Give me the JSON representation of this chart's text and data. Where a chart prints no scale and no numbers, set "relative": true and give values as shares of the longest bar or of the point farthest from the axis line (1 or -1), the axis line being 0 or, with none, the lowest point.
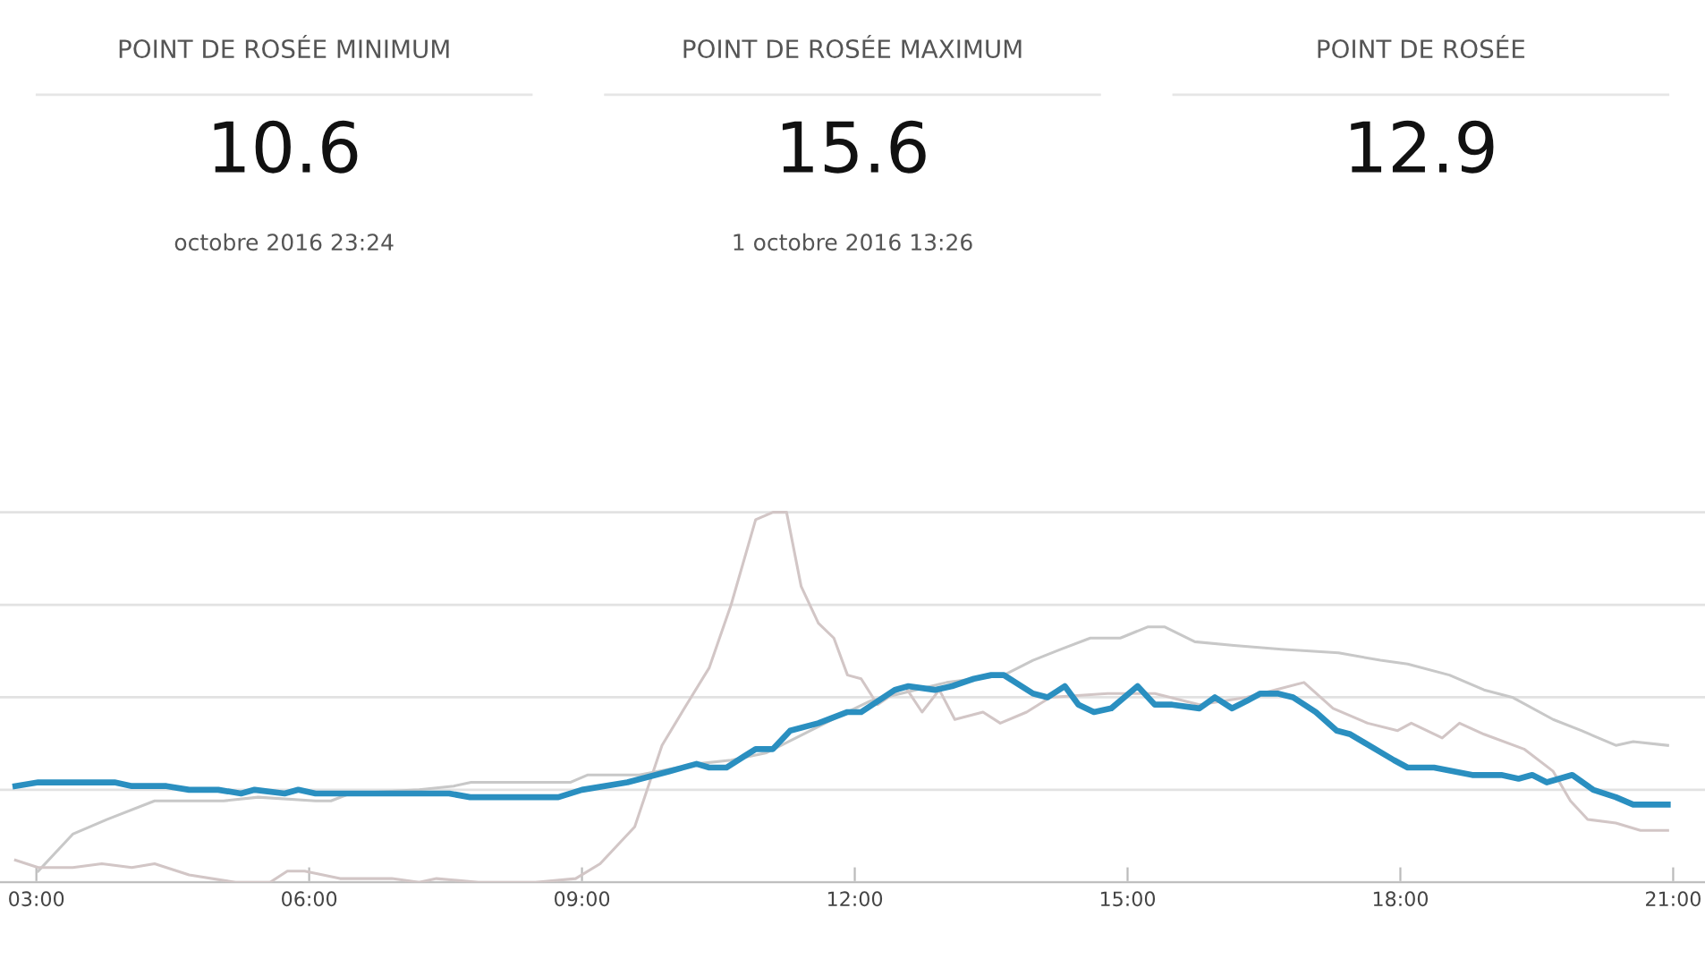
{
  "chart_data": [
    {
      "type": "other",
      "annotations": [
        "POINT DE ROSÉE MINIMUM",
        "10.6",
        "octobre 2016 23:24",
        "POINT DE ROSÉE MAXIMUM",
        "15.6",
        "1 octobre 2016 13:26",
        "POINT DE ROSÉE",
        "12.9"
      ]
    },
    {
      "type": "line",
      "relative": true,
      "grid": "y",
      "tick_labels": "x",
      "xlim": [
        2.6,
        21.35
      ],
      "xticks": [
        {
          "value": 3,
          "label": "03:00"
        },
        {
          "value": 6,
          "label": "06:00"
        },
        {
          "value": 9,
          "label": "09:00"
        },
        {
          "value": 12,
          "label": "12:00"
        },
        {
          "value": 15,
          "label": "15:00"
        },
        {
          "value": 18,
          "label": "18:00"
        },
        {
          "value": 21,
          "label": "21:00"
        }
      ],
      "series": [
        {
          "color": "#c8c8c8",
          "x": [
            3.02,
            3.4,
            3.78,
            4.3,
            5.06,
            5.44,
            6.07,
            6.24,
            6.45,
            7.21,
            7.59,
            7.78,
            8.87,
            9.06,
            9.63,
            10.26,
            10.64,
            11.03,
            11.92,
            12.17,
            13.01,
            13.64,
            13.96,
            14.27,
            14.59,
            14.92,
            15.22,
            15.41,
            15.74,
            16.17,
            16.69,
            17.32,
            17.78,
            18.08,
            18.54,
            18.92,
            19.23,
            19.68,
            19.99,
            20.37,
            20.56,
            20.94
          ],
          "values": [
            0.03,
            0.13,
            0.17,
            0.22,
            0.22,
            0.23,
            0.22,
            0.22,
            0.24,
            0.25,
            0.26,
            0.27,
            0.27,
            0.29,
            0.29,
            0.32,
            0.33,
            0.35,
            0.46,
            0.49,
            0.54,
            0.56,
            0.6,
            0.63,
            0.66,
            0.66,
            0.69,
            0.69,
            0.65,
            0.64,
            0.63,
            0.62,
            0.6,
            0.59,
            0.56,
            0.52,
            0.5,
            0.44,
            0.41,
            0.37,
            0.38,
            0.37
          ]
        },
        {
          "color": "#d2c6c6",
          "x": [
            2.77,
            3.02,
            3.4,
            3.72,
            4.05,
            4.3,
            4.68,
            5.19,
            5.57,
            5.76,
            5.95,
            6.34,
            6.91,
            7.21,
            7.4,
            7.86,
            8.49,
            8.93,
            9.2,
            9.58,
            9.88,
            10.15,
            10.4,
            10.64,
            10.91,
            11.1,
            11.25,
            11.41,
            11.6,
            11.77,
            11.92,
            12.07,
            12.25,
            12.55,
            12.74,
            12.93,
            13.1,
            13.41,
            13.6,
            13.89,
            14.15,
            14.78,
            15.3,
            15.79,
            16.31,
            16.94,
            17.26,
            17.64,
            17.97,
            18.12,
            18.46,
            18.65,
            18.92,
            19.36,
            19.68,
            19.87,
            20.06,
            20.37,
            20.64,
            20.94
          ],
          "values": [
            0.06,
            0.04,
            0.04,
            0.05,
            0.04,
            0.05,
            0.02,
            0,
            0,
            0.03,
            0.03,
            0.01,
            0.01,
            0,
            0.01,
            0,
            0,
            0.01,
            0.05,
            0.15,
            0.37,
            0.48,
            0.58,
            0.75,
            0.98,
            1,
            1,
            0.8,
            0.7,
            0.66,
            0.56,
            0.55,
            0.48,
            0.53,
            0.46,
            0.52,
            0.44,
            0.46,
            0.43,
            0.46,
            0.5,
            0.51,
            0.51,
            0.48,
            0.5,
            0.54,
            0.47,
            0.43,
            0.41,
            0.43,
            0.39,
            0.43,
            0.4,
            0.36,
            0.3,
            0.22,
            0.17,
            0.16,
            0.14,
            0.14
          ]
        },
        {
          "color": "#2a8fc0",
          "x": [
            2.77,
            3.02,
            3.86,
            4.05,
            4.43,
            4.68,
            5.0,
            5.25,
            5.4,
            5.73,
            5.88,
            6.07,
            7.54,
            7.77,
            8.74,
            9.0,
            9.5,
            9.96,
            10.26,
            10.4,
            10.59,
            10.78,
            10.91,
            11.1,
            11.29,
            11.6,
            11.92,
            12.07,
            12.44,
            12.59,
            12.88,
            13.07,
            13.31,
            13.5,
            13.64,
            13.96,
            14.12,
            14.31,
            14.46,
            14.63,
            14.82,
            15.11,
            15.3,
            15.49,
            15.79,
            15.96,
            16.15,
            16.31,
            16.46,
            16.65,
            16.82,
            17.07,
            17.3,
            17.45,
            17.93,
            18.08,
            18.37,
            18.79,
            19.11,
            19.3,
            19.45,
            19.61,
            19.89,
            20.12,
            20.37,
            20.56,
            20.94
          ],
          "values": [
            0.26,
            0.27,
            0.27,
            0.26,
            0.26,
            0.25,
            0.25,
            0.24,
            0.25,
            0.24,
            0.25,
            0.24,
            0.24,
            0.23,
            0.23,
            0.25,
            0.27,
            0.3,
            0.32,
            0.31,
            0.31,
            0.34,
            0.36,
            0.36,
            0.41,
            0.43,
            0.46,
            0.46,
            0.52,
            0.53,
            0.52,
            0.53,
            0.55,
            0.56,
            0.56,
            0.51,
            0.5,
            0.53,
            0.48,
            0.46,
            0.47,
            0.53,
            0.48,
            0.48,
            0.47,
            0.5,
            0.47,
            0.49,
            0.51,
            0.51,
            0.5,
            0.46,
            0.41,
            0.4,
            0.33,
            0.31,
            0.31,
            0.29,
            0.29,
            0.28,
            0.29,
            0.27,
            0.29,
            0.25,
            0.23,
            0.21,
            0.21
          ]
        }
      ]
    }
  ]
}
